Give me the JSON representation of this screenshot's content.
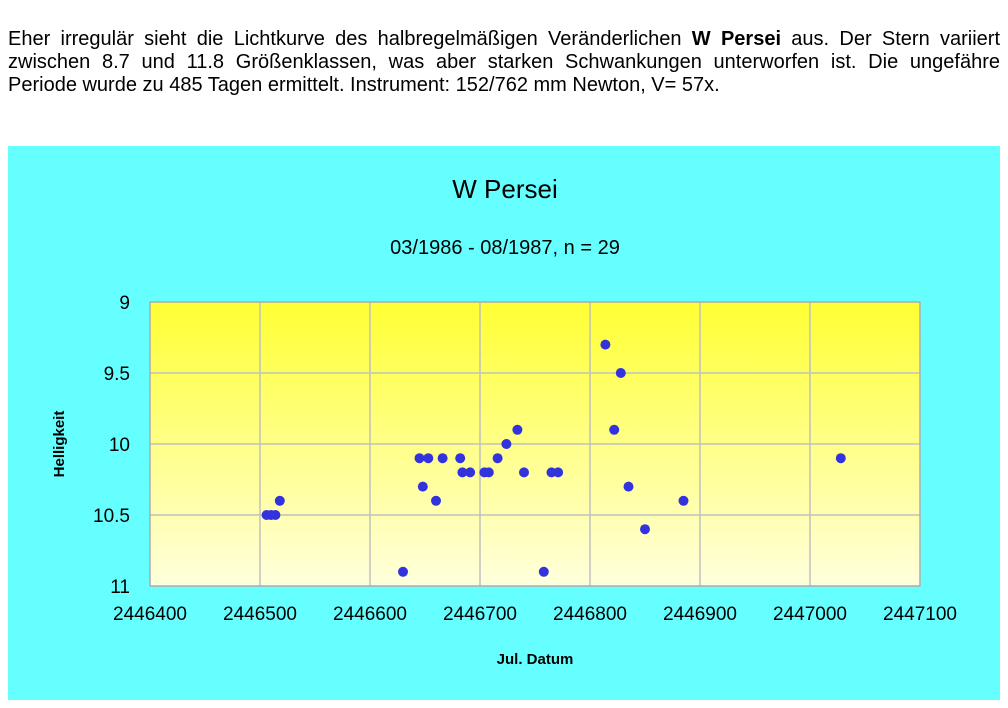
{
  "intro": {
    "text_before": "Eher irregulär sieht die Lichtkurve des halbregelmäßigen Veränderlichen ",
    "star_name": "W Persei",
    "text_after": " aus. Der Stern variiert zwischen 8.7 und 11.8 Größenklassen, was aber starken Schwankungen unterworfen ist. Die ungefähre Periode wurde zu 485 Tagen ermittelt. Instrument: 152/762 mm Newton, V= 57x."
  },
  "colors": {
    "panel_bg": "#66ffff",
    "plot_top": "#ffff33",
    "plot_bottom": "#ffffdd",
    "gridline": "#c0c0c0",
    "marker": "#3333dd"
  },
  "chart_data": {
    "type": "scatter",
    "title": "W Persei",
    "subtitle": "03/1986 - 08/1987, n = 29",
    "xlabel": "Jul. Datum",
    "ylabel": "Helligkeit",
    "xlim": [
      2446400,
      2447100
    ],
    "ylim": [
      9,
      11
    ],
    "y_reversed": true,
    "grid": true,
    "x_ticks": [
      2446400,
      2446500,
      2446600,
      2446700,
      2446800,
      2446900,
      2447000,
      2447100
    ],
    "y_ticks": [
      9,
      9.5,
      10,
      10.5,
      11
    ],
    "x_tick_labels": [
      "2446400",
      "2446500",
      "2446600",
      "2446700",
      "2446800",
      "2446900",
      "2447000",
      "2447100"
    ],
    "y_tick_labels": [
      "9",
      "9.5",
      "10",
      "10.5",
      "11"
    ],
    "points": [
      {
        "x": 2446506,
        "y": 10.5
      },
      {
        "x": 2446510,
        "y": 10.5
      },
      {
        "x": 2446514,
        "y": 10.5
      },
      {
        "x": 2446518,
        "y": 10.4
      },
      {
        "x": 2446630,
        "y": 10.9
      },
      {
        "x": 2446645,
        "y": 10.1
      },
      {
        "x": 2446648,
        "y": 10.3
      },
      {
        "x": 2446653,
        "y": 10.1
      },
      {
        "x": 2446660,
        "y": 10.4
      },
      {
        "x": 2446666,
        "y": 10.1
      },
      {
        "x": 2446682,
        "y": 10.1
      },
      {
        "x": 2446684,
        "y": 10.2
      },
      {
        "x": 2446691,
        "y": 10.2
      },
      {
        "x": 2446704,
        "y": 10.2
      },
      {
        "x": 2446708,
        "y": 10.2
      },
      {
        "x": 2446716,
        "y": 10.1
      },
      {
        "x": 2446724,
        "y": 10.0
      },
      {
        "x": 2446734,
        "y": 9.9
      },
      {
        "x": 2446740,
        "y": 10.2
      },
      {
        "x": 2446758,
        "y": 10.9
      },
      {
        "x": 2446765,
        "y": 10.2
      },
      {
        "x": 2446771,
        "y": 10.2
      },
      {
        "x": 2446814,
        "y": 9.3
      },
      {
        "x": 2446822,
        "y": 9.9
      },
      {
        "x": 2446828,
        "y": 9.5
      },
      {
        "x": 2446835,
        "y": 10.3
      },
      {
        "x": 2446850,
        "y": 10.6
      },
      {
        "x": 2446885,
        "y": 10.4
      },
      {
        "x": 2447028,
        "y": 10.1
      }
    ]
  }
}
